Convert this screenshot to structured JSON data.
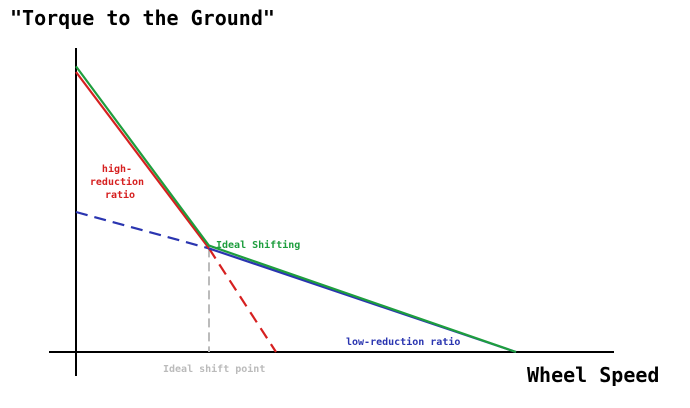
{
  "chart_data": {
    "type": "line",
    "title": "",
    "ylabel": "\"Torque to the Ground\"",
    "xlabel": "Wheel Speed",
    "grid": false,
    "legend": "none",
    "colors": {
      "high": "#d62020",
      "low": "#2a35b0",
      "ideal": "#1e9e3e",
      "shift": "#bbbbbb",
      "axis": "#000000"
    },
    "series": [
      {
        "key": "high",
        "x": [
          0,
          133
        ],
        "y": [
          100,
          37
        ],
        "style": "solid"
      },
      {
        "key": "high_ext",
        "x": [
          133,
          200
        ],
        "y": [
          37,
          0
        ],
        "style": "dashed"
      },
      {
        "key": "low_ext",
        "x": [
          0,
          133
        ],
        "y": [
          50,
          37
        ],
        "style": "dashed"
      },
      {
        "key": "low",
        "x": [
          133,
          440
        ],
        "y": [
          37,
          0
        ],
        "style": "solid"
      },
      {
        "key": "ideal",
        "x": [
          0,
          133,
          440
        ],
        "y": [
          102,
          38,
          0
        ],
        "style": "solid"
      }
    ],
    "shift_point": {
      "x": 133,
      "y": 37
    },
    "annotations": {
      "high": [
        "high-",
        "reduction",
        "ratio"
      ],
      "low": "low-reduction ratio",
      "ideal": "Ideal Shifting",
      "shift": "Ideal shift point"
    }
  }
}
